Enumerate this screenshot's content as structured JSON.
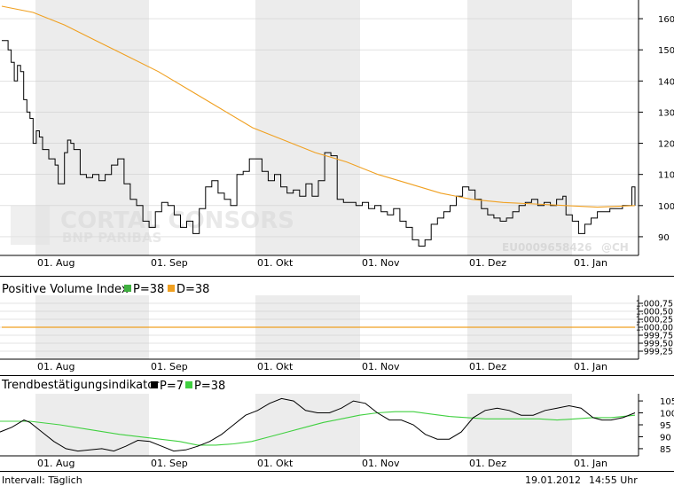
{
  "watermark": {
    "brand": "CORTAL CONSORS",
    "sub": "BNP PARIBAS",
    "isin": "EU0009658426",
    "copyright": "@CH"
  },
  "footer": {
    "interval": "Intervall: Täglich",
    "date": "19.01.2012",
    "time": "14:55 Uhr"
  },
  "colors": {
    "band": "#ececec",
    "price": "#000000",
    "ma": "#f0a020",
    "pvi": "#f0a020",
    "trend_black": "#000000",
    "trend_green": "#40d040",
    "legend_green": "#40b040",
    "legend_orange": "#f0a020"
  },
  "chart_data": [
    {
      "type": "line",
      "name": "price-panel",
      "x_ticks": [
        "01. Aug",
        "01. Sep",
        "01. Okt",
        "01. Nov",
        "01. Dez",
        "01. Jan"
      ],
      "y_ticks": [
        "160",
        "150",
        "140",
        "130",
        "120",
        "110",
        "100",
        "90"
      ],
      "ylim": [
        84,
        166
      ],
      "xlim_days": [
        0,
        202
      ],
      "series": [
        {
          "style": "step-black",
          "points": [
            [
              0,
              153
            ],
            [
              2,
              150
            ],
            [
              3,
              146
            ],
            [
              4,
              140
            ],
            [
              5,
              145
            ],
            [
              6,
              143
            ],
            [
              7,
              134
            ],
            [
              8,
              130
            ],
            [
              9,
              128
            ],
            [
              10,
              120
            ],
            [
              11,
              124
            ],
            [
              12,
              122
            ],
            [
              13,
              118
            ],
            [
              15,
              115
            ],
            [
              17,
              113
            ],
            [
              18,
              107
            ],
            [
              20,
              117
            ],
            [
              21,
              121
            ],
            [
              22,
              120
            ],
            [
              23,
              118
            ],
            [
              25,
              110
            ],
            [
              27,
              109
            ],
            [
              29,
              110
            ],
            [
              31,
              108
            ],
            [
              33,
              110
            ],
            [
              35,
              113
            ],
            [
              37,
              115
            ],
            [
              39,
              107
            ],
            [
              41,
              102
            ],
            [
              43,
              100
            ],
            [
              45,
              95
            ],
            [
              47,
              93
            ],
            [
              49,
              98
            ],
            [
              51,
              101
            ],
            [
              53,
              100
            ],
            [
              55,
              97
            ],
            [
              57,
              93
            ],
            [
              59,
              95
            ],
            [
              61,
              91
            ],
            [
              63,
              99
            ],
            [
              65,
              106
            ],
            [
              67,
              108
            ],
            [
              69,
              104
            ],
            [
              71,
              102
            ],
            [
              73,
              100
            ],
            [
              75,
              110
            ],
            [
              77,
              111
            ],
            [
              79,
              115
            ],
            [
              81,
              115
            ],
            [
              83,
              111
            ],
            [
              85,
              108
            ],
            [
              87,
              110
            ],
            [
              89,
              106
            ],
            [
              91,
              104
            ],
            [
              93,
              105
            ],
            [
              95,
              103
            ],
            [
              97,
              107
            ],
            [
              99,
              103
            ],
            [
              101,
              108
            ],
            [
              103,
              117
            ],
            [
              105,
              116
            ],
            [
              107,
              102
            ],
            [
              109,
              101
            ],
            [
              111,
              101
            ],
            [
              113,
              100
            ],
            [
              115,
              101
            ],
            [
              117,
              99
            ],
            [
              119,
              100
            ],
            [
              121,
              98
            ],
            [
              123,
              97
            ],
            [
              125,
              99
            ],
            [
              127,
              95
            ],
            [
              129,
              93
            ],
            [
              131,
              89
            ],
            [
              133,
              87
            ],
            [
              135,
              89
            ],
            [
              137,
              94
            ],
            [
              139,
              96
            ],
            [
              141,
              98
            ],
            [
              143,
              100
            ],
            [
              145,
              103
            ],
            [
              147,
              106
            ],
            [
              149,
              105
            ],
            [
              151,
              102
            ],
            [
              153,
              99
            ],
            [
              155,
              97
            ],
            [
              157,
              96
            ],
            [
              159,
              95
            ],
            [
              161,
              96
            ],
            [
              163,
              98
            ],
            [
              165,
              100
            ],
            [
              167,
              101
            ],
            [
              169,
              102
            ],
            [
              171,
              100
            ],
            [
              173,
              101
            ],
            [
              175,
              100
            ],
            [
              177,
              102
            ],
            [
              179,
              103
            ],
            [
              180,
              97
            ],
            [
              182,
              95
            ],
            [
              184,
              91
            ],
            [
              186,
              94
            ],
            [
              188,
              96
            ],
            [
              190,
              98
            ],
            [
              192,
              98
            ],
            [
              194,
              99
            ],
            [
              196,
              99
            ],
            [
              198,
              100
            ],
            [
              200,
              100
            ],
            [
              201,
              106
            ],
            [
              202,
              100
            ]
          ]
        },
        {
          "style": "line-orange",
          "points": [
            [
              0,
              164
            ],
            [
              10,
              162
            ],
            [
              20,
              158
            ],
            [
              30,
              153
            ],
            [
              40,
              148
            ],
            [
              50,
              143
            ],
            [
              60,
              137
            ],
            [
              70,
              131
            ],
            [
              80,
              125
            ],
            [
              90,
              121
            ],
            [
              100,
              117
            ],
            [
              110,
              114
            ],
            [
              120,
              110
            ],
            [
              130,
              107
            ],
            [
              140,
              104
            ],
            [
              150,
              102
            ],
            [
              160,
              101
            ],
            [
              170,
              100.5
            ],
            [
              180,
              100
            ],
            [
              190,
              99.5
            ],
            [
              202,
              100
            ]
          ]
        }
      ]
    },
    {
      "type": "line",
      "name": "pvi-panel",
      "title": "Positive Volume Index",
      "legend": [
        {
          "label": "P=38",
          "color": "#40b040"
        },
        {
          "label": "D=38",
          "color": "#f0a020"
        }
      ],
      "y_ticks": [
        "1.000,75",
        "1.000,50",
        "1.000,25",
        "1.000,00",
        "999,75",
        "999,50",
        "999,25"
      ],
      "y_values": [
        1000.75,
        1000.5,
        1000.25,
        1000.0,
        999.75,
        999.5,
        999.25
      ],
      "ylim": [
        999.0,
        1001.0
      ],
      "x_ticks": [
        "01. Aug",
        "01. Sep",
        "01. Okt",
        "01. Nov",
        "01. Dez",
        "01. Jan"
      ],
      "series": [
        {
          "style": "line-orange",
          "points": [
            [
              0,
              1000.0
            ],
            [
              202,
              1000.0
            ]
          ]
        }
      ]
    },
    {
      "type": "line",
      "name": "trend-panel",
      "title": "Trendbestätigungsindikator",
      "legend": [
        {
          "label": "P=7",
          "color": "#000000"
        },
        {
          "label": "P=38",
          "color": "#40d040"
        }
      ],
      "y_ticks": [
        "105",
        "100",
        "95",
        "90",
        "85"
      ],
      "ylim": [
        82,
        108
      ],
      "x_ticks": [
        "01. Aug",
        "01. Sep",
        "01. Okt",
        "01. Nov",
        "01. Dez",
        "01. Jan"
      ],
      "series": [
        {
          "style": "line-black",
          "points": [
            [
              0,
              92
            ],
            [
              4,
              94
            ],
            [
              8,
              97
            ],
            [
              10,
              96
            ],
            [
              14,
              92
            ],
            [
              18,
              88
            ],
            [
              22,
              85
            ],
            [
              26,
              84
            ],
            [
              30,
              84.5
            ],
            [
              34,
              85
            ],
            [
              38,
              84
            ],
            [
              42,
              86
            ],
            [
              46,
              88.5
            ],
            [
              50,
              88
            ],
            [
              54,
              86
            ],
            [
              58,
              84
            ],
            [
              62,
              84.5
            ],
            [
              66,
              86
            ],
            [
              70,
              88
            ],
            [
              74,
              91
            ],
            [
              78,
              95
            ],
            [
              82,
              99
            ],
            [
              86,
              101
            ],
            [
              90,
              104
            ],
            [
              94,
              106
            ],
            [
              98,
              105
            ],
            [
              102,
              101
            ],
            [
              106,
              100
            ],
            [
              110,
              100
            ],
            [
              114,
              102
            ],
            [
              118,
              105
            ],
            [
              122,
              104
            ],
            [
              126,
              100
            ],
            [
              130,
              97
            ],
            [
              134,
              97
            ],
            [
              138,
              95
            ],
            [
              142,
              91
            ],
            [
              146,
              89
            ],
            [
              150,
              89
            ],
            [
              154,
              92
            ],
            [
              158,
              98
            ],
            [
              162,
              101
            ],
            [
              166,
              102
            ],
            [
              170,
              101
            ],
            [
              174,
              99
            ],
            [
              178,
              99
            ],
            [
              182,
              101
            ],
            [
              186,
              102
            ],
            [
              190,
              103
            ],
            [
              194,
              102
            ],
            [
              198,
              98
            ],
            [
              201,
              97
            ],
            [
              204,
              97
            ],
            [
              208,
              98
            ],
            [
              212,
              100
            ]
          ]
        },
        {
          "style": "line-green",
          "points": [
            [
              0,
              96.5
            ],
            [
              10,
              96.5
            ],
            [
              20,
              95
            ],
            [
              30,
              93
            ],
            [
              40,
              91
            ],
            [
              50,
              89.5
            ],
            [
              60,
              88
            ],
            [
              66,
              86.5
            ],
            [
              72,
              86.5
            ],
            [
              78,
              87
            ],
            [
              84,
              88
            ],
            [
              90,
              90
            ],
            [
              96,
              92
            ],
            [
              102,
              94
            ],
            [
              108,
              96
            ],
            [
              114,
              97.5
            ],
            [
              120,
              99
            ],
            [
              126,
              100
            ],
            [
              132,
              100.5
            ],
            [
              138,
              100.5
            ],
            [
              144,
              99.5
            ],
            [
              150,
              98.5
            ],
            [
              156,
              98
            ],
            [
              162,
              97.5
            ],
            [
              168,
              97.5
            ],
            [
              174,
              97.5
            ],
            [
              180,
              97.5
            ],
            [
              186,
              97
            ],
            [
              192,
              97.5
            ],
            [
              198,
              98
            ],
            [
              204,
              98
            ],
            [
              212,
              99
            ]
          ]
        }
      ]
    }
  ]
}
